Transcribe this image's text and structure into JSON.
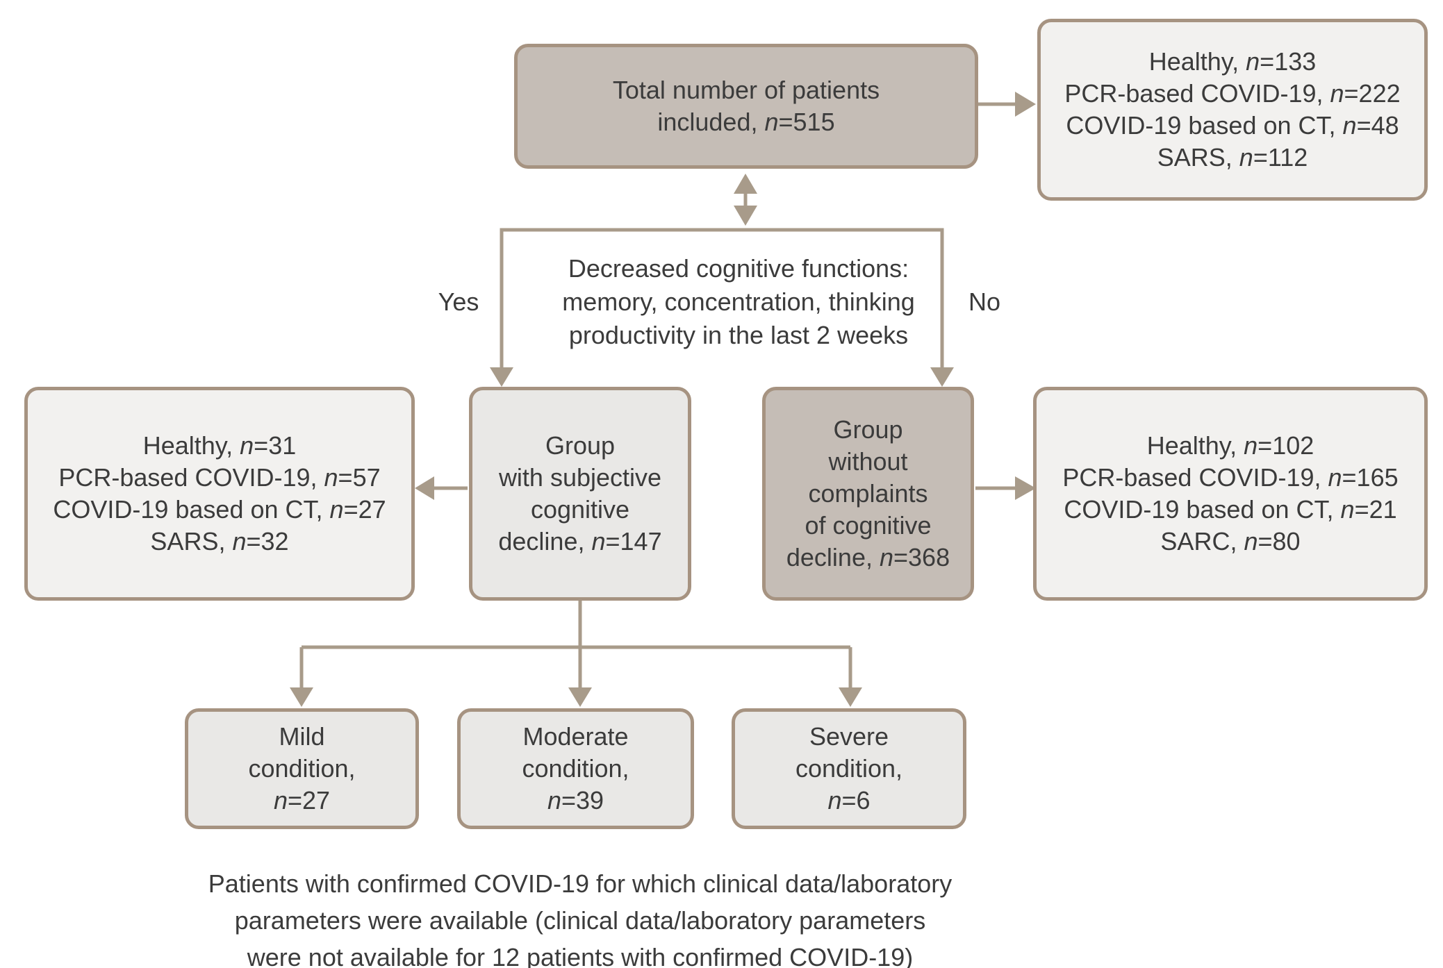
{
  "diagram": {
    "colors": {
      "connector": "#a89b8a",
      "box_border": "#a69381",
      "dark_fill": "#c5bdb6",
      "light_fill": "#e9e8e6",
      "pale_fill": "#f2f1ef",
      "text": "#3b3b3b"
    },
    "total_box": {
      "lines": [
        "Total number of patients",
        "included, n=515"
      ]
    },
    "total_breakdown_box": {
      "lines": [
        "Healthy, n=133",
        "PCR-based COVID-19, n=222",
        "COVID-19 based on CT, n=48",
        "SARS, n=112"
      ]
    },
    "decision": {
      "lines": [
        "Decreased cognitive functions:",
        "memory, concentration, thinking",
        "productivity in the last 2 weeks"
      ],
      "yes_label": "Yes",
      "no_label": "No"
    },
    "scd_box": {
      "lines": [
        "Group",
        "with subjective",
        "cognitive",
        "decline, n=147"
      ]
    },
    "scd_breakdown_box": {
      "lines": [
        "Healthy, n=31",
        "PCR-based COVID-19, n=57",
        "COVID-19 based on CT, n=27",
        "SARS, n=32"
      ]
    },
    "no_complaints_box": {
      "lines": [
        "Group",
        "without",
        "complaints",
        "of cognitive",
        "decline, n=368"
      ]
    },
    "no_complaints_breakdown_box": {
      "lines": [
        "Healthy, n=102",
        "PCR-based COVID-19, n=165",
        "COVID-19 based on CT, n=21",
        "SARC, n=80"
      ]
    },
    "severity_boxes": [
      {
        "lines": [
          "Mild",
          "condition,",
          "n=27"
        ]
      },
      {
        "lines": [
          "Moderate",
          "condition,",
          "n=39"
        ]
      },
      {
        "lines": [
          "Severe",
          "condition,",
          "n=6"
        ]
      }
    ],
    "caption_lines": [
      "Patients with confirmed COVID-19 for which clinical data/laboratory",
      "parameters were available (clinical data/laboratory parameters",
      "were not available for 12 patients with confirmed COVID-19)"
    ]
  }
}
